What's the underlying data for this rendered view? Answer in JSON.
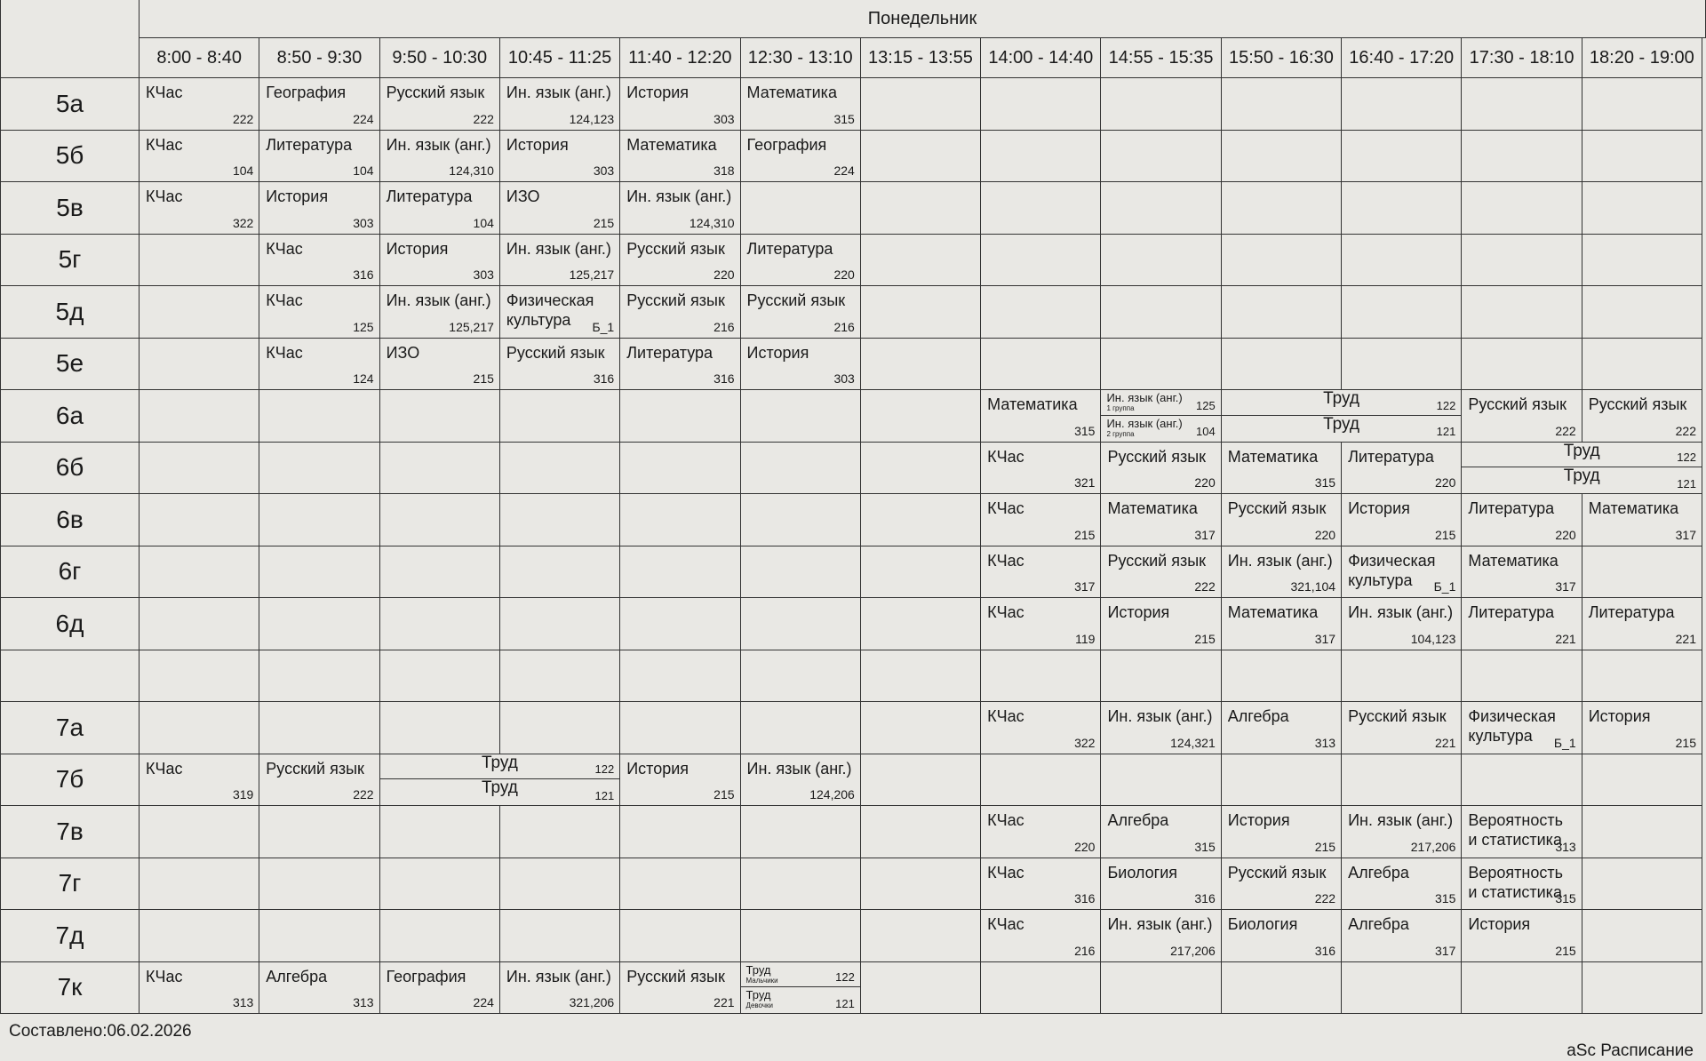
{
  "header": {
    "day": "Понедельник",
    "times": [
      "8:00 - 8:40",
      "8:50 - 9:30",
      "9:50 - 10:30",
      "10:45 - 11:25",
      "11:40 - 12:20",
      "12:30 - 13:10",
      "13:15 - 13:55",
      "14:00 - 14:40",
      "14:55 - 15:35",
      "15:50 - 16:30",
      "16:40 - 17:20",
      "17:30 - 18:10",
      "18:20 - 19:00"
    ]
  },
  "rows": [
    {
      "label": "5а",
      "lessons": [
        {
          "col": 0,
          "subject": "КЧас",
          "room": "222"
        },
        {
          "col": 1,
          "subject": "География",
          "room": "224"
        },
        {
          "col": 2,
          "subject": "Русский язык",
          "room": "222"
        },
        {
          "col": 3,
          "subject": "Ин. язык (анг.)",
          "room": "124,123"
        },
        {
          "col": 4,
          "subject": "История",
          "room": "303"
        },
        {
          "col": 5,
          "subject": "Математика",
          "room": "315"
        }
      ]
    },
    {
      "label": "5б",
      "lessons": [
        {
          "col": 0,
          "subject": "КЧас",
          "room": "104"
        },
        {
          "col": 1,
          "subject": "Литература",
          "room": "104"
        },
        {
          "col": 2,
          "subject": "Ин. язык (анг.)",
          "room": "124,310"
        },
        {
          "col": 3,
          "subject": "История",
          "room": "303"
        },
        {
          "col": 4,
          "subject": "Математика",
          "room": "318"
        },
        {
          "col": 5,
          "subject": "География",
          "room": "224"
        }
      ]
    },
    {
      "label": "5в",
      "lessons": [
        {
          "col": 0,
          "subject": "КЧас",
          "room": "322"
        },
        {
          "col": 1,
          "subject": "История",
          "room": "303"
        },
        {
          "col": 2,
          "subject": "Литература",
          "room": "104"
        },
        {
          "col": 3,
          "subject": "ИЗО",
          "room": "215"
        },
        {
          "col": 4,
          "subject": "Ин. язык (анг.)",
          "room": "124,310"
        }
      ]
    },
    {
      "label": "5г",
      "lessons": [
        {
          "col": 1,
          "subject": "КЧас",
          "room": "316"
        },
        {
          "col": 2,
          "subject": "История",
          "room": "303"
        },
        {
          "col": 3,
          "subject": "Ин. язык (анг.)",
          "room": "125,217"
        },
        {
          "col": 4,
          "subject": "Русский язык",
          "room": "220"
        },
        {
          "col": 5,
          "subject": "Литература",
          "room": "220"
        }
      ]
    },
    {
      "label": "5д",
      "lessons": [
        {
          "col": 1,
          "subject": "КЧас",
          "room": "125"
        },
        {
          "col": 2,
          "subject": "Ин. язык (анг.)",
          "room": "125,217"
        },
        {
          "col": 3,
          "subject": "Физическая культура",
          "room": "Б_1"
        },
        {
          "col": 4,
          "subject": "Русский язык",
          "room": "216"
        },
        {
          "col": 5,
          "subject": "Русский язык",
          "room": "216"
        }
      ]
    },
    {
      "label": "5е",
      "lessons": [
        {
          "col": 1,
          "subject": "КЧас",
          "room": "124"
        },
        {
          "col": 2,
          "subject": "ИЗО",
          "room": "215"
        },
        {
          "col": 3,
          "subject": "Русский язык",
          "room": "316"
        },
        {
          "col": 4,
          "subject": "Литература",
          "room": "316"
        },
        {
          "col": 5,
          "subject": "История",
          "room": "303"
        }
      ]
    },
    {
      "label": "6а",
      "lessons": [
        {
          "col": 7,
          "subject": "Математика",
          "room": "315"
        },
        {
          "col": 8,
          "span": 1,
          "groups": [
            {
              "subject": "Ин. язык (анг.)",
              "note": "1 группа",
              "room": "125"
            },
            {
              "subject": "Ин. язык (анг.)",
              "note": "2 группа",
              "room": "104"
            }
          ]
        },
        {
          "col": 9,
          "span": 2,
          "groups": [
            {
              "subject": "Труд",
              "room": "122"
            },
            {
              "subject": "Труд",
              "room": "121"
            }
          ]
        },
        {
          "col": 11,
          "subject": "Русский язык",
          "room": "222"
        },
        {
          "col": 12,
          "subject": "Русский язык",
          "room": "222"
        }
      ]
    },
    {
      "label": "6б",
      "lessons": [
        {
          "col": 7,
          "subject": "КЧас",
          "room": "321"
        },
        {
          "col": 8,
          "subject": "Русский язык",
          "room": "220"
        },
        {
          "col": 9,
          "subject": "Математика",
          "room": "315"
        },
        {
          "col": 10,
          "subject": "Литература",
          "room": "220"
        },
        {
          "col": 11,
          "span": 2,
          "groups": [
            {
              "subject": "Труд",
              "room": "122"
            },
            {
              "subject": "Труд",
              "room": "121"
            }
          ]
        }
      ]
    },
    {
      "label": "6в",
      "lessons": [
        {
          "col": 7,
          "subject": "КЧас",
          "room": "215"
        },
        {
          "col": 8,
          "subject": "Математика",
          "room": "317"
        },
        {
          "col": 9,
          "subject": "Русский язык",
          "room": "220"
        },
        {
          "col": 10,
          "subject": "История",
          "room": "215"
        },
        {
          "col": 11,
          "subject": "Литература",
          "room": "220"
        },
        {
          "col": 12,
          "subject": "Математика",
          "room": "317"
        }
      ]
    },
    {
      "label": "6г",
      "lessons": [
        {
          "col": 7,
          "subject": "КЧас",
          "room": "317"
        },
        {
          "col": 8,
          "subject": "Русский язык",
          "room": "222"
        },
        {
          "col": 9,
          "subject": "Ин. язык (анг.)",
          "room": "321,104"
        },
        {
          "col": 10,
          "subject": "Физическая культура",
          "room": "Б_1"
        },
        {
          "col": 11,
          "subject": "Математика",
          "room": "317"
        }
      ]
    },
    {
      "label": "6д",
      "lessons": [
        {
          "col": 7,
          "subject": "КЧас",
          "room": "119"
        },
        {
          "col": 8,
          "subject": "История",
          "room": "215"
        },
        {
          "col": 9,
          "subject": "Математика",
          "room": "317"
        },
        {
          "col": 10,
          "subject": "Ин. язык (анг.)",
          "room": "104,123"
        },
        {
          "col": 11,
          "subject": "Литература",
          "room": "221"
        },
        {
          "col": 12,
          "subject": "Литература",
          "room": "221"
        }
      ]
    },
    {
      "lessons": []
    },
    {
      "label": "7а",
      "lessons": [
        {
          "col": 7,
          "subject": "КЧас",
          "room": "322"
        },
        {
          "col": 8,
          "subject": "Ин. язык (анг.)",
          "room": "124,321"
        },
        {
          "col": 9,
          "subject": "Алгебра",
          "room": "313"
        },
        {
          "col": 10,
          "subject": "Русский язык",
          "room": "221"
        },
        {
          "col": 11,
          "subject": "Физическая культура",
          "room": "Б_1"
        },
        {
          "col": 12,
          "subject": "История",
          "room": "215"
        }
      ]
    },
    {
      "label": "7б",
      "lessons": [
        {
          "col": 0,
          "subject": "КЧас",
          "room": "319"
        },
        {
          "col": 1,
          "subject": "Русский язык",
          "room": "222"
        },
        {
          "col": 2,
          "span": 2,
          "groups": [
            {
              "subject": "Труд",
              "room": "122"
            },
            {
              "subject": "Труд",
              "room": "121"
            }
          ]
        },
        {
          "col": 4,
          "subject": "История",
          "room": "215"
        },
        {
          "col": 5,
          "subject": "Ин. язык (анг.)",
          "room": "124,206"
        }
      ]
    },
    {
      "label": "7в",
      "lessons": [
        {
          "col": 7,
          "subject": "КЧас",
          "room": "220"
        },
        {
          "col": 8,
          "subject": "Алгебра",
          "room": "315"
        },
        {
          "col": 9,
          "subject": "История",
          "room": "215"
        },
        {
          "col": 10,
          "subject": "Ин. язык (анг.)",
          "room": "217,206"
        },
        {
          "col": 11,
          "subject": "Вероятность и статистика",
          "room": "313"
        }
      ]
    },
    {
      "label": "7г",
      "lessons": [
        {
          "col": 7,
          "subject": "КЧас",
          "room": "316"
        },
        {
          "col": 8,
          "subject": "Биология",
          "room": "316"
        },
        {
          "col": 9,
          "subject": "Русский язык",
          "room": "222"
        },
        {
          "col": 10,
          "subject": "Алгебра",
          "room": "315"
        },
        {
          "col": 11,
          "subject": "Вероятность и статистика",
          "room": "315"
        }
      ]
    },
    {
      "label": "7д",
      "lessons": [
        {
          "col": 7,
          "subject": "КЧас",
          "room": "216"
        },
        {
          "col": 8,
          "subject": "Ин. язык (анг.)",
          "room": "217,206"
        },
        {
          "col": 9,
          "subject": "Биология",
          "room": "316"
        },
        {
          "col": 10,
          "subject": "Алгебра",
          "room": "317"
        },
        {
          "col": 11,
          "subject": "История",
          "room": "215"
        }
      ]
    },
    {
      "label": "7к",
      "lessons": [
        {
          "col": 0,
          "subject": "КЧас",
          "room": "313"
        },
        {
          "col": 1,
          "subject": "Алгебра",
          "room": "313"
        },
        {
          "col": 2,
          "subject": "География",
          "room": "224"
        },
        {
          "col": 3,
          "subject": "Ин. язык (анг.)",
          "room": "321,206"
        },
        {
          "col": 4,
          "subject": "Русский язык",
          "room": "221"
        },
        {
          "col": 5,
          "span": 1,
          "groups": [
            {
              "subject": "Труд",
              "note": "Мальчики",
              "room": "122"
            },
            {
              "subject": "Труд",
              "note": "Девочки",
              "room": "121"
            }
          ]
        }
      ]
    }
  ],
  "footer": {
    "compiled": "Составлено:06.02.2026",
    "brand": "aSc Расписание"
  }
}
